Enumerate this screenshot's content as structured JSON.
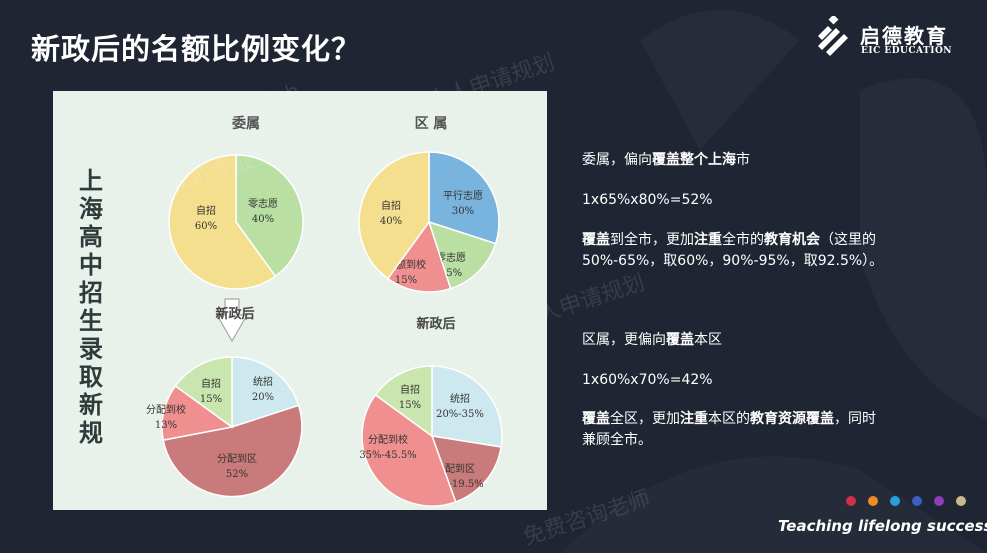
{
  "slide": {
    "title": "新政后的名额比例变化？",
    "tagline": "Teaching lifelong success"
  },
  "logo": {
    "name_cn": "启德教育",
    "name_en": "EIC EDUCATION"
  },
  "figure": {
    "vertical_title": [
      "上",
      "海",
      "高",
      "中",
      "招",
      "生",
      "录",
      "取",
      "新",
      "规"
    ],
    "arrow_label": "新政后",
    "charts": [
      {
        "title": "委属",
        "slices": [
          {
            "label": "零志愿",
            "value": "40%",
            "share": 0.4,
            "color": "#b9dfa3"
          },
          {
            "label": "自招",
            "value": "60%",
            "share": 0.6,
            "color": "#f4df8f"
          }
        ]
      },
      {
        "title": "区 属",
        "slices": [
          {
            "label": "平行志愿",
            "value": "30%",
            "share": 0.3,
            "color": "#79b4de"
          },
          {
            "label": "零志愿",
            "value": "15%",
            "share": 0.15,
            "color": "#b9dfa3"
          },
          {
            "label": "名额到校",
            "value": "15%",
            "share": 0.15,
            "color": "#ef8f8f"
          },
          {
            "label": "自招",
            "value": "40%",
            "share": 0.4,
            "color": "#f4df8f"
          }
        ]
      },
      {
        "title": "新政后",
        "slices": [
          {
            "label": "统招",
            "value": "20%",
            "share": 0.2,
            "color": "#cde8ee"
          },
          {
            "label": "分配到区",
            "value": "52%",
            "share": 0.52,
            "color": "#c97a7a"
          },
          {
            "label": "分配到校",
            "value": "13%",
            "share": 0.13,
            "color": "#ef8f8f"
          },
          {
            "label": "自招",
            "value": "15%",
            "share": 0.15,
            "color": "#c8e6ae"
          }
        ]
      },
      {
        "title": "新政后",
        "slices": [
          {
            "label": "统招",
            "value": "20%-35%",
            "share": 0.275,
            "color": "#cde8ee"
          },
          {
            "label": "分配到区",
            "value": "15%-19.5%",
            "share": 0.17,
            "color": "#c97a7a"
          },
          {
            "label": "分配到校",
            "value": "35%-45.5%",
            "share": 0.405,
            "color": "#ef8f8f"
          },
          {
            "label": "自招",
            "value": "15%",
            "share": 0.15,
            "color": "#c8e6ae"
          }
        ]
      }
    ]
  },
  "notes": {
    "n1_pre": "委属，偏向",
    "n1_b1": "覆盖",
    "n1_mid": "整个",
    "n1_b2": "上海",
    "n1_post": "市",
    "n2": "1x65%x80%=52%",
    "n3_b1": "覆盖",
    "n3_a": "到全市，更加",
    "n3_b2": "注重",
    "n3_b": "全市的",
    "n3_b3": "教育机会",
    "n3_c": "（这里的",
    "n3_line2": "50%-65%，取60%，90%-95%，取92.5%）。",
    "n4_pre": "区属，更偏向",
    "n4_b1": "覆盖",
    "n4_post": "本区",
    "n5": "1x60%x70%=42%",
    "n6_b1": "覆盖",
    "n6_a": "全区，更加",
    "n6_b2": "注重",
    "n6_b": "本区的",
    "n6_b3": "教育资源覆盖",
    "n6_c": "，同时",
    "n6_line2": "兼顾全市。"
  },
  "watermarks": [
    "微信搜索 eicsh",
    "获取专业留学解决方案 定制个人申请规划",
    "免费咨询老师"
  ],
  "dot_colors": [
    "#d32e4a",
    "#f08a24",
    "#2a9fd8",
    "#3b5fc4",
    "#8a3fb8",
    "#c9b98a"
  ]
}
